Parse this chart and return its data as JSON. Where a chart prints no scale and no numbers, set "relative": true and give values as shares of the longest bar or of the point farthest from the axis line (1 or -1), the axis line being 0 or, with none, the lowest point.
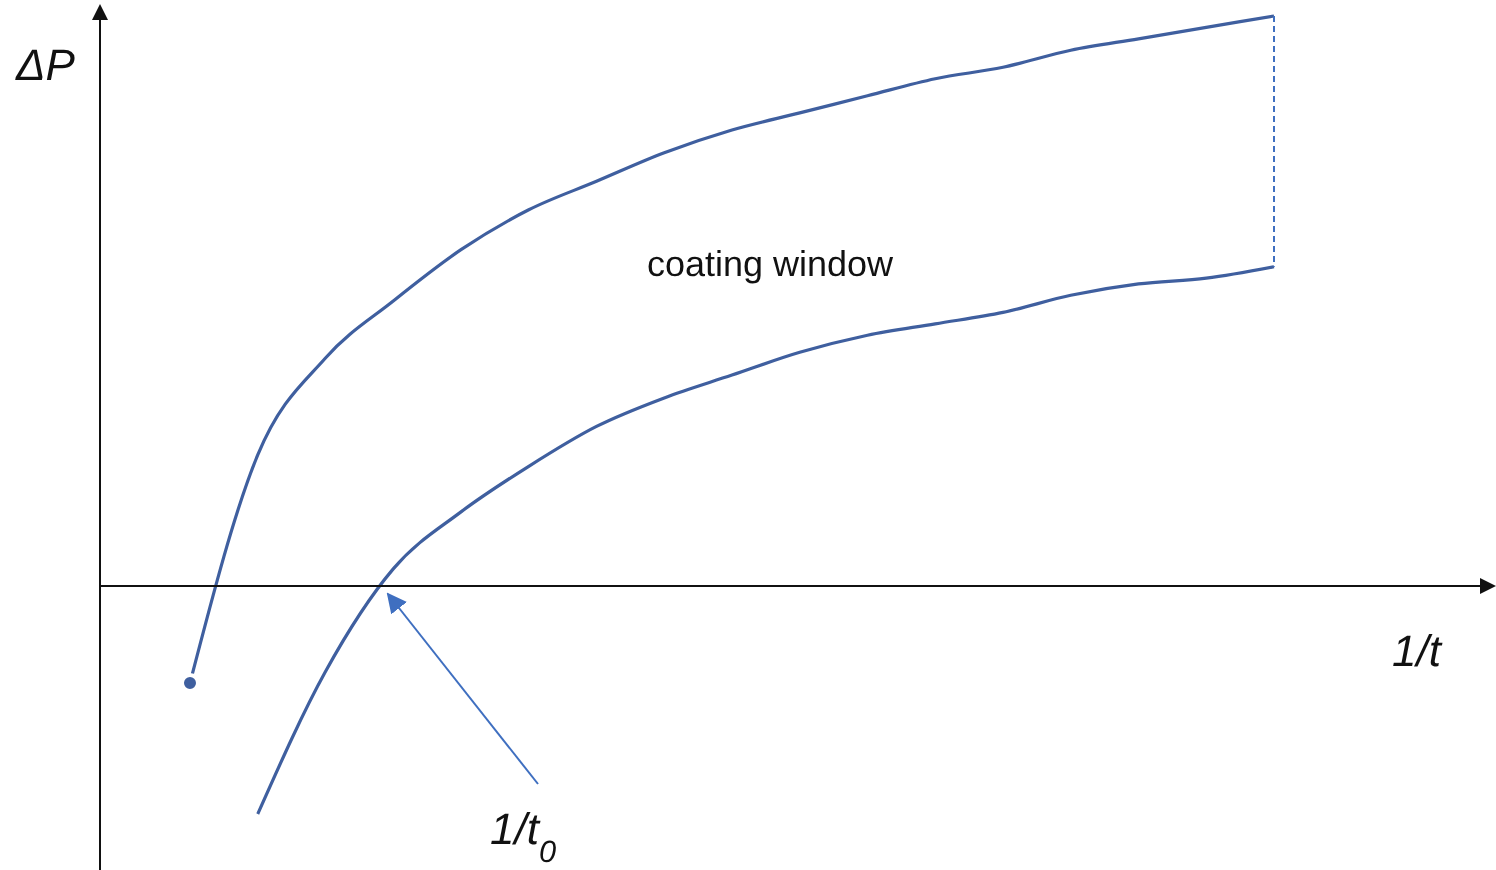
{
  "chart_data": {
    "type": "line",
    "xlabel": "1/t",
    "ylabel": "ΔP",
    "relative": true,
    "categories": [
      null,
      null,
      null,
      null,
      null,
      null,
      null,
      null,
      null,
      null,
      null,
      null,
      null,
      null,
      null,
      null,
      null
    ],
    "series": [
      {
        "color": "#3f5f9f",
        "values": [
          -0.17,
          0.23,
          0.4,
          0.5,
          0.59,
          0.66,
          0.71,
          0.76,
          0.8,
          0.83,
          0.86,
          0.89,
          0.91,
          0.94,
          0.96,
          0.98,
          1
        ]
      },
      {
        "color": "#3f5f9f",
        "values": [
          null,
          -0.4,
          -0.15,
          0.03,
          0.13,
          0.21,
          0.28,
          0.33,
          0.37,
          0.41,
          0.44,
          0.46,
          0.48,
          0.51,
          0.53,
          0.54,
          0.56
        ]
      }
    ],
    "annotations": [
      "coating window",
      "1/t$_{0}$"
    ]
  }
}
